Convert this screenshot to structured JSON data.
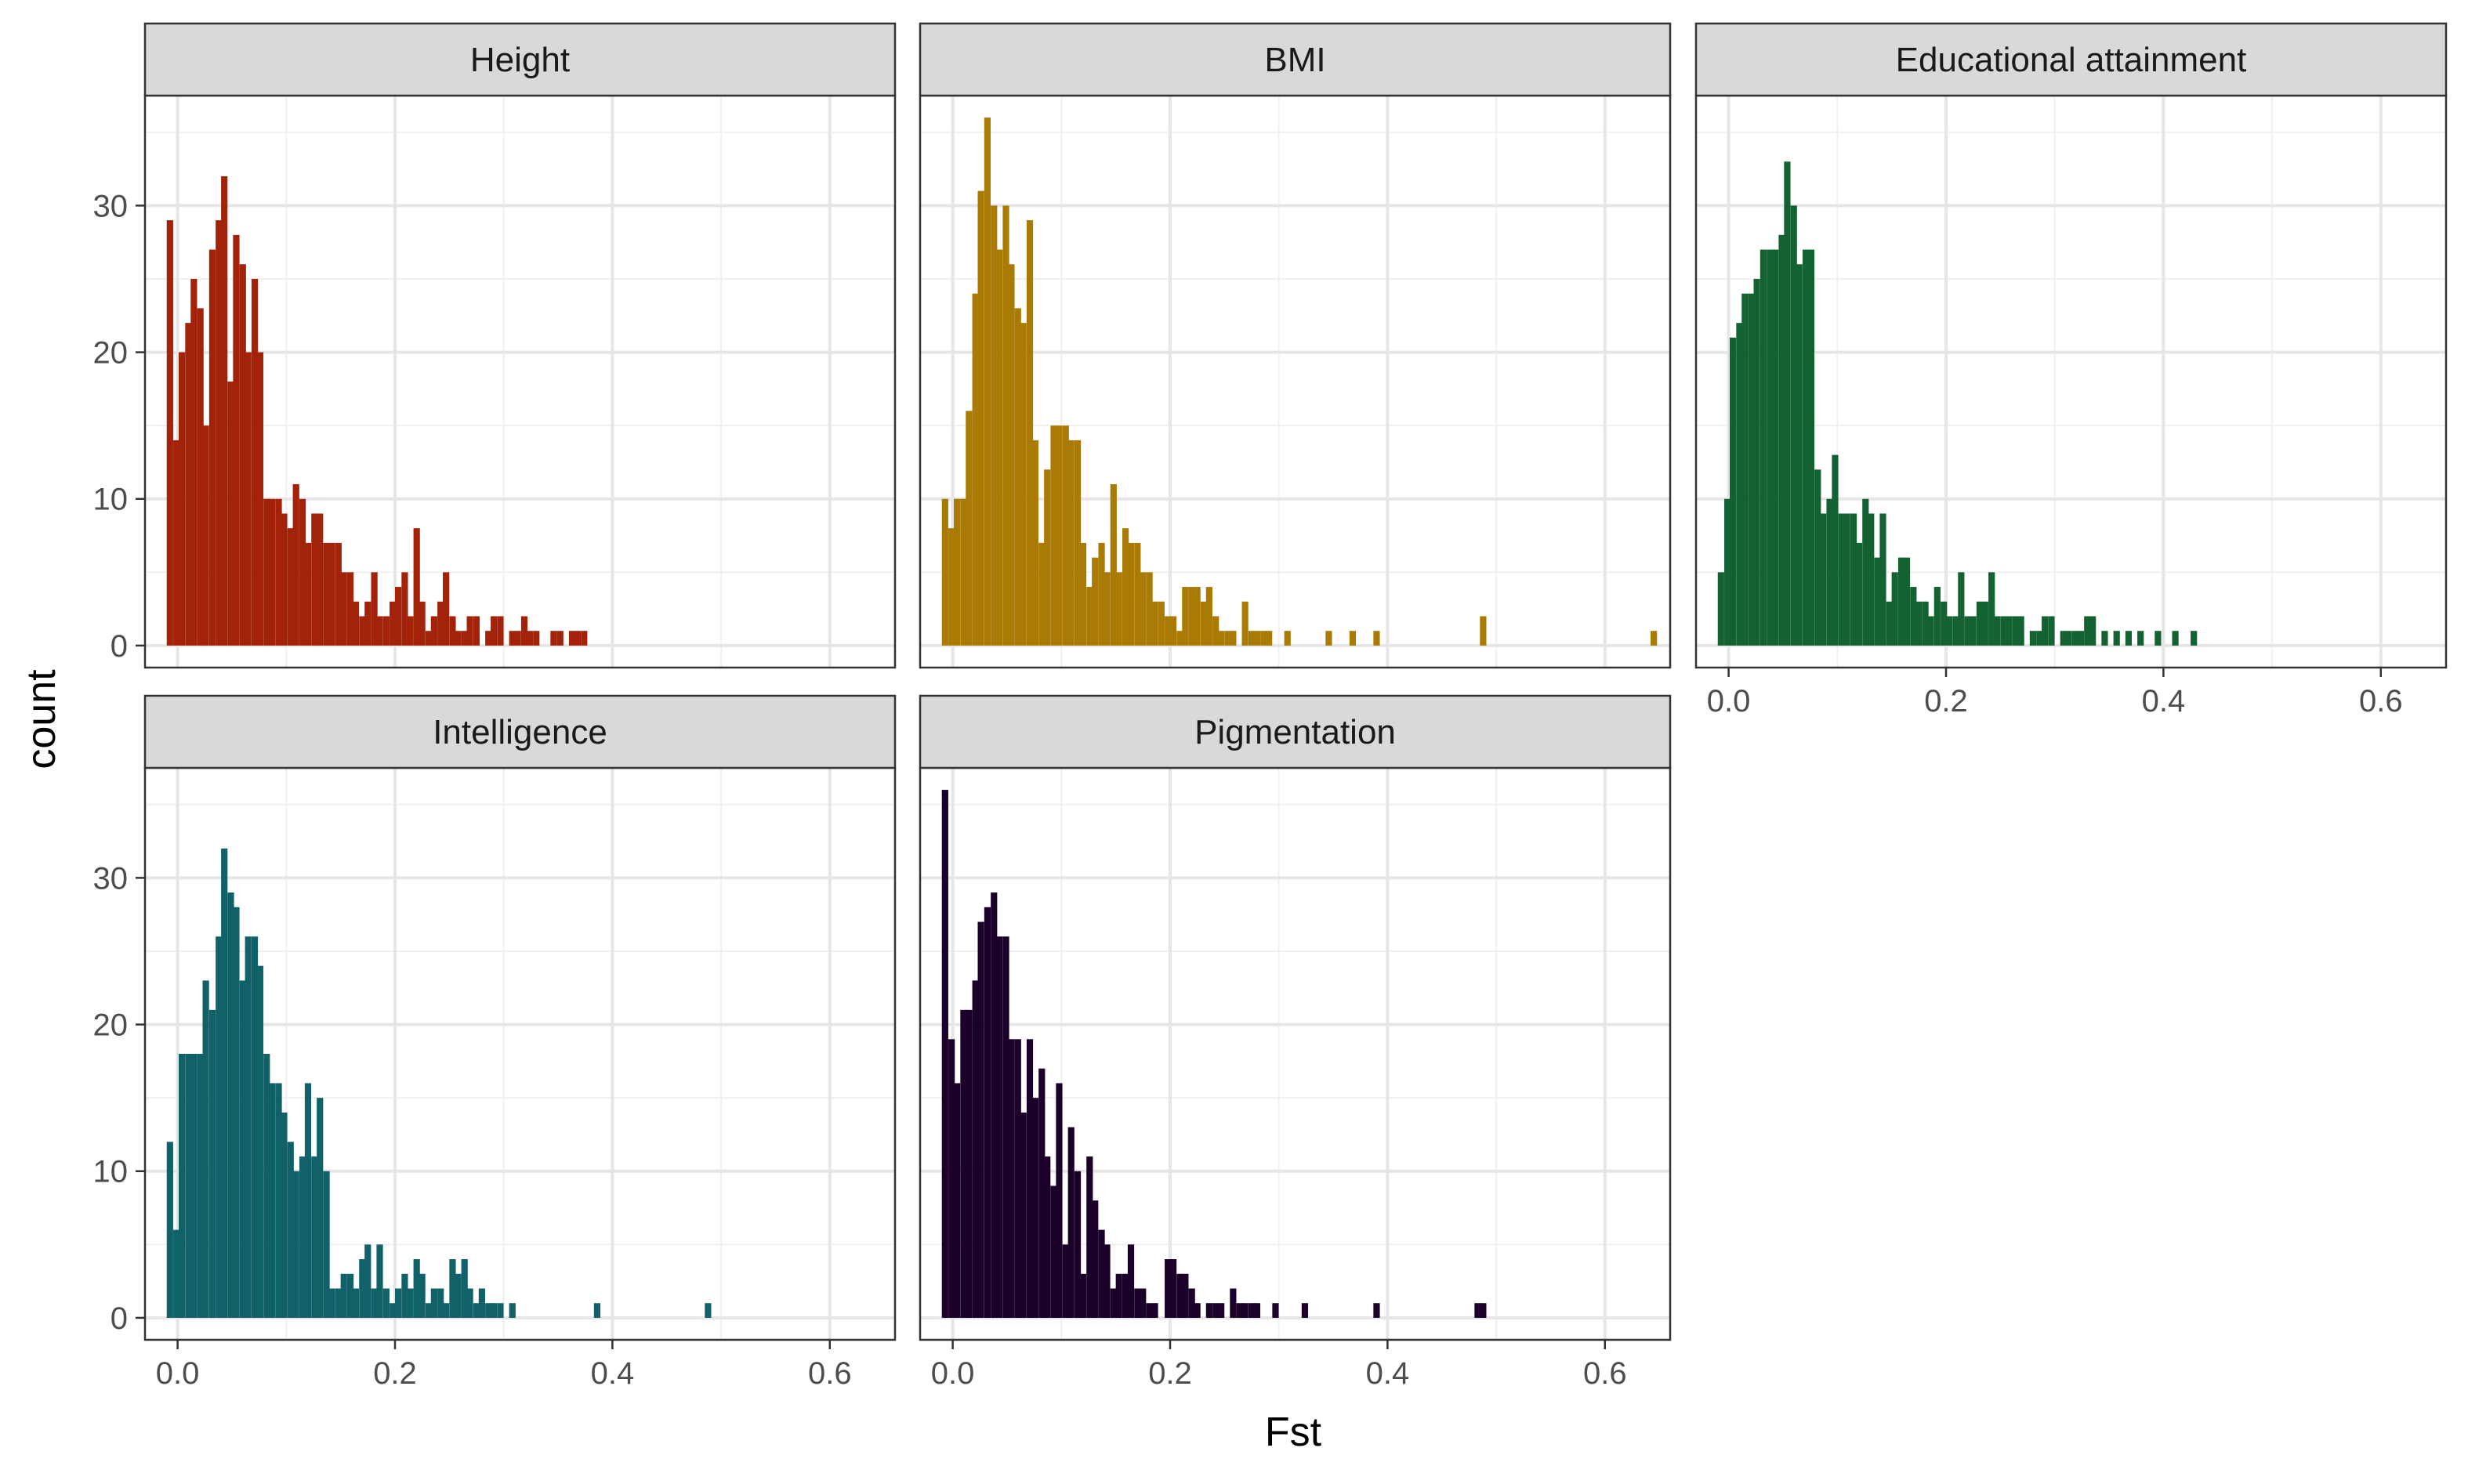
{
  "chart_data": {
    "type": "bar",
    "subtype": "faceted-histogram",
    "xlabel": "Fst",
    "ylabel": "count",
    "xlim": [
      -0.03,
      0.66
    ],
    "ylim": [
      -1.5,
      37.5
    ],
    "x_ticks": [
      0.0,
      0.2,
      0.4,
      0.6
    ],
    "x_tick_labels": [
      "0.0",
      "0.2",
      "0.4",
      "0.6"
    ],
    "y_ticks": [
      0,
      10,
      20,
      30
    ],
    "y_tick_labels": [
      "0",
      "10",
      "20",
      "30"
    ],
    "grid": true,
    "theme": "bw",
    "bin_width": 0.00555,
    "colors": {
      "Height": "#A3220A",
      "BMI": "#AA7B04",
      "Educational attainment": "#146232",
      "Intelligence": "#116268",
      "Pigmentation": "#1B0029"
    },
    "panels": [
      {
        "name": "Height",
        "bins": [
          [
            -0.01,
            29
          ],
          [
            -0.004,
            14
          ],
          [
            0.001,
            20
          ],
          [
            0.007,
            22
          ],
          [
            0.012,
            25
          ],
          [
            0.018,
            23
          ],
          [
            0.023,
            15
          ],
          [
            0.029,
            27
          ],
          [
            0.035,
            29
          ],
          [
            0.04,
            32
          ],
          [
            0.046,
            18
          ],
          [
            0.051,
            28
          ],
          [
            0.057,
            26
          ],
          [
            0.062,
            20
          ],
          [
            0.068,
            25
          ],
          [
            0.073,
            20
          ],
          [
            0.079,
            10
          ],
          [
            0.084,
            10
          ],
          [
            0.09,
            10
          ],
          [
            0.095,
            9
          ],
          [
            0.101,
            8
          ],
          [
            0.106,
            11
          ],
          [
            0.112,
            10
          ],
          [
            0.117,
            7
          ],
          [
            0.123,
            9
          ],
          [
            0.128,
            9
          ],
          [
            0.134,
            7
          ],
          [
            0.139,
            7
          ],
          [
            0.145,
            7
          ],
          [
            0.15,
            5
          ],
          [
            0.156,
            5
          ],
          [
            0.161,
            3
          ],
          [
            0.167,
            2
          ],
          [
            0.172,
            3
          ],
          [
            0.178,
            5
          ],
          [
            0.183,
            2
          ],
          [
            0.189,
            2
          ],
          [
            0.195,
            3
          ],
          [
            0.2,
            4
          ],
          [
            0.206,
            5
          ],
          [
            0.211,
            2
          ],
          [
            0.217,
            8
          ],
          [
            0.222,
            3
          ],
          [
            0.228,
            1
          ],
          [
            0.233,
            2
          ],
          [
            0.239,
            3
          ],
          [
            0.244,
            5
          ],
          [
            0.25,
            2
          ],
          [
            0.255,
            1
          ],
          [
            0.261,
            1
          ],
          [
            0.266,
            2
          ],
          [
            0.272,
            2
          ],
          [
            0.283,
            1
          ],
          [
            0.288,
            2
          ],
          [
            0.294,
            2
          ],
          [
            0.305,
            1
          ],
          [
            0.31,
            1
          ],
          [
            0.316,
            2
          ],
          [
            0.321,
            1
          ],
          [
            0.327,
            1
          ],
          [
            0.343,
            1
          ],
          [
            0.349,
            1
          ],
          [
            0.36,
            1
          ],
          [
            0.365,
            1
          ],
          [
            0.371,
            1
          ]
        ]
      },
      {
        "name": "BMI",
        "bins": [
          [
            -0.01,
            10
          ],
          [
            -0.004,
            8
          ],
          [
            0.001,
            10
          ],
          [
            0.007,
            10
          ],
          [
            0.012,
            16
          ],
          [
            0.018,
            24
          ],
          [
            0.023,
            31
          ],
          [
            0.029,
            36
          ],
          [
            0.035,
            30
          ],
          [
            0.04,
            27
          ],
          [
            0.046,
            30
          ],
          [
            0.051,
            26
          ],
          [
            0.057,
            23
          ],
          [
            0.062,
            22
          ],
          [
            0.068,
            29
          ],
          [
            0.073,
            14
          ],
          [
            0.079,
            7
          ],
          [
            0.084,
            12
          ],
          [
            0.09,
            15
          ],
          [
            0.095,
            15
          ],
          [
            0.101,
            15
          ],
          [
            0.106,
            14
          ],
          [
            0.112,
            14
          ],
          [
            0.117,
            7
          ],
          [
            0.123,
            4
          ],
          [
            0.128,
            6
          ],
          [
            0.134,
            7
          ],
          [
            0.139,
            5
          ],
          [
            0.145,
            11
          ],
          [
            0.15,
            5
          ],
          [
            0.156,
            8
          ],
          [
            0.161,
            7
          ],
          [
            0.167,
            7
          ],
          [
            0.172,
            5
          ],
          [
            0.178,
            5
          ],
          [
            0.183,
            3
          ],
          [
            0.189,
            3
          ],
          [
            0.195,
            2
          ],
          [
            0.2,
            2
          ],
          [
            0.206,
            1
          ],
          [
            0.211,
            4
          ],
          [
            0.217,
            4
          ],
          [
            0.222,
            4
          ],
          [
            0.228,
            3
          ],
          [
            0.233,
            4
          ],
          [
            0.239,
            2
          ],
          [
            0.244,
            1
          ],
          [
            0.25,
            1
          ],
          [
            0.255,
            1
          ],
          [
            0.266,
            3
          ],
          [
            0.272,
            1
          ],
          [
            0.277,
            1
          ],
          [
            0.283,
            1
          ],
          [
            0.288,
            1
          ],
          [
            0.305,
            1
          ],
          [
            0.343,
            1
          ],
          [
            0.365,
            1
          ],
          [
            0.387,
            1
          ],
          [
            0.485,
            2
          ],
          [
            0.642,
            1
          ]
        ]
      },
      {
        "name": "Educational attainment",
        "bins": [
          [
            -0.01,
            5
          ],
          [
            -0.004,
            10
          ],
          [
            0.001,
            21
          ],
          [
            0.007,
            22
          ],
          [
            0.012,
            24
          ],
          [
            0.018,
            24
          ],
          [
            0.023,
            25
          ],
          [
            0.029,
            27
          ],
          [
            0.035,
            27
          ],
          [
            0.04,
            27
          ],
          [
            0.046,
            28
          ],
          [
            0.051,
            33
          ],
          [
            0.057,
            30
          ],
          [
            0.062,
            26
          ],
          [
            0.068,
            27
          ],
          [
            0.073,
            27
          ],
          [
            0.079,
            12
          ],
          [
            0.084,
            9
          ],
          [
            0.09,
            10
          ],
          [
            0.095,
            13
          ],
          [
            0.101,
            9
          ],
          [
            0.106,
            9
          ],
          [
            0.112,
            9
          ],
          [
            0.117,
            7
          ],
          [
            0.123,
            10
          ],
          [
            0.128,
            9
          ],
          [
            0.134,
            6
          ],
          [
            0.139,
            9
          ],
          [
            0.145,
            3
          ],
          [
            0.15,
            5
          ],
          [
            0.156,
            6
          ],
          [
            0.161,
            6
          ],
          [
            0.167,
            4
          ],
          [
            0.172,
            3
          ],
          [
            0.178,
            3
          ],
          [
            0.183,
            2
          ],
          [
            0.189,
            4
          ],
          [
            0.195,
            3
          ],
          [
            0.2,
            2
          ],
          [
            0.206,
            2
          ],
          [
            0.211,
            5
          ],
          [
            0.217,
            2
          ],
          [
            0.222,
            2
          ],
          [
            0.228,
            3
          ],
          [
            0.233,
            3
          ],
          [
            0.239,
            5
          ],
          [
            0.244,
            2
          ],
          [
            0.25,
            2
          ],
          [
            0.255,
            2
          ],
          [
            0.261,
            2
          ],
          [
            0.266,
            2
          ],
          [
            0.277,
            1
          ],
          [
            0.283,
            1
          ],
          [
            0.288,
            2
          ],
          [
            0.294,
            2
          ],
          [
            0.305,
            1
          ],
          [
            0.31,
            1
          ],
          [
            0.316,
            1
          ],
          [
            0.321,
            1
          ],
          [
            0.327,
            2
          ],
          [
            0.332,
            2
          ],
          [
            0.343,
            1
          ],
          [
            0.354,
            1
          ],
          [
            0.365,
            1
          ],
          [
            0.376,
            1
          ],
          [
            0.392,
            1
          ],
          [
            0.408,
            1
          ],
          [
            0.425,
            1
          ]
        ]
      },
      {
        "name": "Intelligence",
        "bins": [
          [
            -0.01,
            12
          ],
          [
            -0.004,
            6
          ],
          [
            0.001,
            18
          ],
          [
            0.007,
            18
          ],
          [
            0.012,
            18
          ],
          [
            0.018,
            18
          ],
          [
            0.023,
            23
          ],
          [
            0.029,
            21
          ],
          [
            0.035,
            26
          ],
          [
            0.04,
            32
          ],
          [
            0.046,
            29
          ],
          [
            0.051,
            28
          ],
          [
            0.057,
            23
          ],
          [
            0.062,
            26
          ],
          [
            0.068,
            26
          ],
          [
            0.073,
            24
          ],
          [
            0.079,
            18
          ],
          [
            0.084,
            16
          ],
          [
            0.09,
            16
          ],
          [
            0.095,
            14
          ],
          [
            0.101,
            12
          ],
          [
            0.106,
            10
          ],
          [
            0.112,
            11
          ],
          [
            0.117,
            16
          ],
          [
            0.123,
            11
          ],
          [
            0.128,
            15
          ],
          [
            0.134,
            10
          ],
          [
            0.139,
            2
          ],
          [
            0.145,
            2
          ],
          [
            0.15,
            3
          ],
          [
            0.156,
            3
          ],
          [
            0.161,
            2
          ],
          [
            0.167,
            4
          ],
          [
            0.172,
            5
          ],
          [
            0.178,
            2
          ],
          [
            0.183,
            5
          ],
          [
            0.189,
            2
          ],
          [
            0.195,
            1
          ],
          [
            0.2,
            2
          ],
          [
            0.206,
            3
          ],
          [
            0.211,
            2
          ],
          [
            0.217,
            4
          ],
          [
            0.222,
            3
          ],
          [
            0.228,
            1
          ],
          [
            0.233,
            2
          ],
          [
            0.239,
            2
          ],
          [
            0.244,
            1
          ],
          [
            0.25,
            4
          ],
          [
            0.255,
            3
          ],
          [
            0.261,
            4
          ],
          [
            0.266,
            2
          ],
          [
            0.272,
            1
          ],
          [
            0.277,
            2
          ],
          [
            0.283,
            1
          ],
          [
            0.288,
            1
          ],
          [
            0.294,
            1
          ],
          [
            0.305,
            1
          ],
          [
            0.383,
            1
          ],
          [
            0.485,
            1
          ]
        ]
      },
      {
        "name": "Pigmentation",
        "bins": [
          [
            -0.01,
            36
          ],
          [
            -0.004,
            19
          ],
          [
            0.001,
            16
          ],
          [
            0.007,
            21
          ],
          [
            0.012,
            21
          ],
          [
            0.018,
            23
          ],
          [
            0.023,
            27
          ],
          [
            0.029,
            28
          ],
          [
            0.035,
            29
          ],
          [
            0.04,
            26
          ],
          [
            0.046,
            26
          ],
          [
            0.051,
            19
          ],
          [
            0.057,
            19
          ],
          [
            0.062,
            14
          ],
          [
            0.068,
            19
          ],
          [
            0.073,
            15
          ],
          [
            0.079,
            17
          ],
          [
            0.084,
            11
          ],
          [
            0.09,
            9
          ],
          [
            0.095,
            16
          ],
          [
            0.101,
            5
          ],
          [
            0.106,
            13
          ],
          [
            0.112,
            10
          ],
          [
            0.117,
            3
          ],
          [
            0.123,
            11
          ],
          [
            0.128,
            8
          ],
          [
            0.134,
            6
          ],
          [
            0.139,
            5
          ],
          [
            0.145,
            2
          ],
          [
            0.15,
            3
          ],
          [
            0.156,
            3
          ],
          [
            0.161,
            5
          ],
          [
            0.167,
            2
          ],
          [
            0.172,
            2
          ],
          [
            0.178,
            1
          ],
          [
            0.183,
            1
          ],
          [
            0.195,
            4
          ],
          [
            0.2,
            4
          ],
          [
            0.206,
            3
          ],
          [
            0.211,
            3
          ],
          [
            0.217,
            2
          ],
          [
            0.222,
            1
          ],
          [
            0.233,
            1
          ],
          [
            0.239,
            1
          ],
          [
            0.244,
            1
          ],
          [
            0.255,
            2
          ],
          [
            0.261,
            1
          ],
          [
            0.266,
            1
          ],
          [
            0.272,
            1
          ],
          [
            0.277,
            1
          ],
          [
            0.294,
            1
          ],
          [
            0.321,
            1
          ],
          [
            0.387,
            1
          ],
          [
            0.48,
            1
          ],
          [
            0.485,
            1
          ]
        ]
      }
    ]
  }
}
